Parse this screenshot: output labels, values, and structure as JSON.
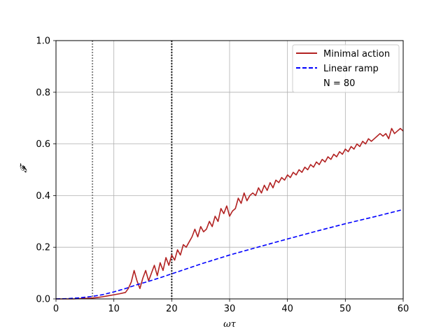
{
  "chart_data": {
    "type": "line",
    "xlabel": "ωτ",
    "ylabel": "𝓕",
    "xlim": [
      0,
      60
    ],
    "ylim": [
      0,
      1.0
    ],
    "x_ticks": [
      0,
      10,
      20,
      30,
      40,
      50,
      60
    ],
    "y_ticks": [
      0.0,
      0.2,
      0.4,
      0.6,
      0.8,
      1.0
    ],
    "x_tick_labels": [
      "0",
      "10",
      "20",
      "30",
      "40",
      "50",
      "60"
    ],
    "y_tick_labels": [
      "0.0",
      "0.2",
      "0.4",
      "0.6",
      "0.8",
      "1.0"
    ],
    "grid": true,
    "legend_position": "top-right",
    "legend_note": "N = 80",
    "vertical_lines": [
      {
        "x": 6.3,
        "style": "dotted",
        "color": "#888888"
      },
      {
        "x": 20.0,
        "style": "dotted",
        "color": "#222222"
      }
    ],
    "series": [
      {
        "name": "Minimal action",
        "color": "#b22222",
        "style": "solid",
        "x": [
          0,
          1,
          2,
          3,
          4,
          5,
          6,
          7,
          8,
          9,
          10,
          11,
          12,
          12.5,
          13,
          13.5,
          14,
          14.5,
          15,
          15.5,
          16,
          16.5,
          17,
          17.5,
          18,
          18.5,
          19,
          19.5,
          20,
          20.5,
          21,
          21.5,
          22,
          22.5,
          23,
          23.5,
          24,
          24.5,
          25,
          25.5,
          26,
          26.5,
          27,
          27.5,
          28,
          28.5,
          29,
          29.5,
          30,
          30.5,
          31,
          31.5,
          32,
          32.5,
          33,
          33.5,
          34,
          34.5,
          35,
          35.5,
          36,
          36.5,
          37,
          37.5,
          38,
          38.5,
          39,
          39.5,
          40,
          40.5,
          41,
          41.5,
          42,
          42.5,
          43,
          43.5,
          44,
          44.5,
          45,
          45.5,
          46,
          46.5,
          47,
          47.5,
          48,
          48.5,
          49,
          49.5,
          50,
          50.5,
          51,
          51.5,
          52,
          52.5,
          53,
          53.5,
          54,
          54.5,
          55,
          55.5,
          56,
          56.5,
          57,
          57.5,
          58,
          58.5,
          59,
          59.5,
          60
        ],
        "y": [
          0,
          0,
          0,
          0,
          0.001,
          0.002,
          0.003,
          0.005,
          0.008,
          0.012,
          0.016,
          0.02,
          0.025,
          0.04,
          0.065,
          0.11,
          0.07,
          0.04,
          0.08,
          0.11,
          0.07,
          0.1,
          0.13,
          0.09,
          0.14,
          0.11,
          0.16,
          0.13,
          0.17,
          0.15,
          0.19,
          0.17,
          0.21,
          0.2,
          0.22,
          0.24,
          0.27,
          0.24,
          0.28,
          0.26,
          0.27,
          0.3,
          0.28,
          0.32,
          0.3,
          0.35,
          0.33,
          0.36,
          0.32,
          0.34,
          0.35,
          0.39,
          0.37,
          0.41,
          0.38,
          0.4,
          0.41,
          0.4,
          0.43,
          0.41,
          0.44,
          0.42,
          0.45,
          0.43,
          0.46,
          0.45,
          0.47,
          0.46,
          0.48,
          0.47,
          0.49,
          0.48,
          0.5,
          0.49,
          0.51,
          0.5,
          0.52,
          0.51,
          0.53,
          0.52,
          0.54,
          0.53,
          0.55,
          0.54,
          0.56,
          0.55,
          0.57,
          0.56,
          0.58,
          0.57,
          0.59,
          0.58,
          0.6,
          0.59,
          0.61,
          0.6,
          0.62,
          0.61,
          0.62,
          0.63,
          0.64,
          0.63,
          0.64,
          0.62,
          0.66,
          0.64,
          0.65,
          0.66,
          0.65
        ]
      },
      {
        "name": "Linear ramp",
        "color": "#0000ff",
        "style": "dashed",
        "x": [
          0,
          2,
          4,
          6,
          8,
          10,
          12,
          14,
          16,
          18,
          20,
          25,
          30,
          35,
          40,
          45,
          50,
          55,
          60
        ],
        "y": [
          0,
          0.001,
          0.004,
          0.009,
          0.016,
          0.027,
          0.04,
          0.055,
          0.068,
          0.082,
          0.097,
          0.135,
          0.17,
          0.201,
          0.232,
          0.262,
          0.291,
          0.318,
          0.346
        ]
      }
    ]
  }
}
